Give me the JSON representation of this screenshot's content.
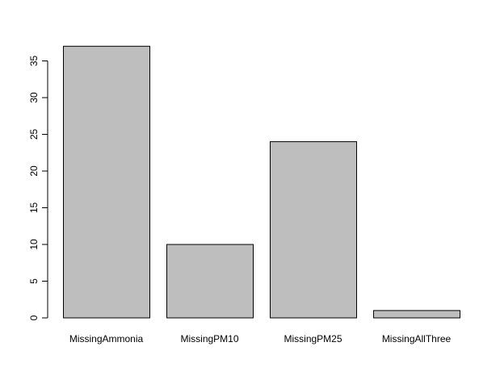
{
  "chart_data": {
    "type": "bar",
    "categories": [
      "MissingAmmonia",
      "MissingPM10",
      "MissingPM25",
      "MissingAllThree"
    ],
    "values": [
      37,
      10,
      24,
      1
    ],
    "title": "",
    "xlabel": "",
    "ylabel": "",
    "ylim": [
      0,
      35
    ],
    "yticks": [
      0,
      5,
      10,
      15,
      20,
      25,
      30,
      35
    ],
    "grid": false,
    "bar_fill": "#bebebe",
    "bar_stroke": "#000000"
  }
}
